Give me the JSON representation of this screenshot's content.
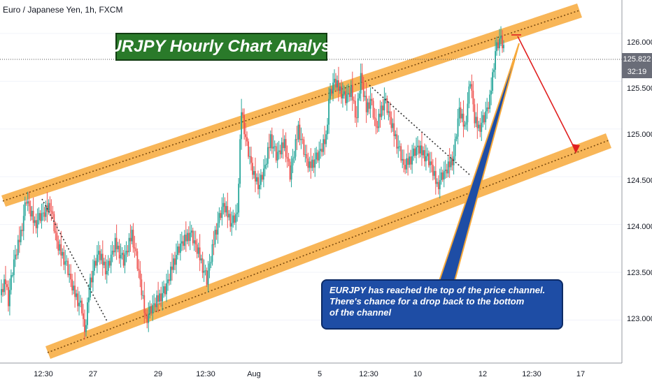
{
  "header": {
    "symbol_line": "Euro / Japanese Yen, 1h, FXCM"
  },
  "title": "EURJPY Hourly Chart Analysis",
  "callout": {
    "lines": [
      "EURJPY has reached the top of the price channel.",
      "There's chance for a drop back to the bottom",
      "of the channel"
    ]
  },
  "price_axis": {
    "current_price": "125.822",
    "countdown": "32:19"
  },
  "colors": {
    "up": "#26a69a",
    "down": "#ef5350",
    "channel_band": "#f7a93b",
    "title_bg": "#2a7a2a",
    "callout_bg": "#1e4da5",
    "arrow": "#e02020"
  },
  "chart_data": {
    "type": "candlestick",
    "title": "Euro / Japanese Yen, 1h, FXCM",
    "ylim": [
      122.55,
      126.35
    ],
    "y_ticks": [
      "126.000",
      "125.500",
      "125.000",
      "124.500",
      "124.000",
      "123.500",
      "123.000"
    ],
    "x_ticks": [
      "12:30",
      "27",
      "29",
      "12:30",
      "Aug",
      "5",
      "12:30",
      "10",
      "12",
      "12:30",
      "17"
    ],
    "grid": true,
    "close_path": [
      [
        0,
        123.3
      ],
      [
        3,
        123.4
      ],
      [
        5,
        123.2
      ],
      [
        9,
        123.6
      ],
      [
        14,
        123.9
      ],
      [
        18,
        124.25
      ],
      [
        24,
        124.0
      ],
      [
        30,
        124.1
      ],
      [
        35,
        124.2
      ],
      [
        40,
        123.8
      ],
      [
        46,
        123.6
      ],
      [
        52,
        123.3
      ],
      [
        58,
        123.1
      ],
      [
        60,
        122.85
      ],
      [
        64,
        123.4
      ],
      [
        70,
        123.7
      ],
      [
        76,
        123.5
      ],
      [
        82,
        123.8
      ],
      [
        88,
        123.6
      ],
      [
        94,
        123.9
      ],
      [
        100,
        123.4
      ],
      [
        104,
        123.0
      ],
      [
        108,
        123.1
      ],
      [
        112,
        123.2
      ],
      [
        118,
        123.3
      ],
      [
        124,
        123.6
      ],
      [
        130,
        123.8
      ],
      [
        136,
        123.9
      ],
      [
        142,
        123.7
      ],
      [
        148,
        123.4
      ],
      [
        154,
        123.9
      ],
      [
        160,
        124.2
      ],
      [
        166,
        124.0
      ],
      [
        170,
        124.1
      ],
      [
        173,
        125.2
      ],
      [
        177,
        124.8
      ],
      [
        182,
        124.5
      ],
      [
        186,
        124.4
      ],
      [
        190,
        124.6
      ],
      [
        194,
        124.9
      ],
      [
        198,
        124.7
      ],
      [
        204,
        124.85
      ],
      [
        208,
        124.5
      ],
      [
        214,
        125.0
      ],
      [
        219,
        124.7
      ],
      [
        222,
        124.6
      ],
      [
        228,
        124.7
      ],
      [
        234,
        124.9
      ],
      [
        236,
        125.3
      ],
      [
        240,
        125.5
      ],
      [
        244,
        125.4
      ],
      [
        248,
        125.3
      ],
      [
        252,
        125.4
      ],
      [
        256,
        125.1
      ],
      [
        259,
        125.55
      ],
      [
        263,
        125.2
      ],
      [
        266,
        125.3
      ],
      [
        270,
        125.0
      ],
      [
        276,
        125.3
      ],
      [
        282,
        125.0
      ],
      [
        286,
        124.8
      ],
      [
        290,
        124.6
      ],
      [
        296,
        124.7
      ],
      [
        300,
        124.8
      ],
      [
        306,
        124.7
      ],
      [
        310,
        124.6
      ],
      [
        314,
        124.4
      ],
      [
        318,
        124.5
      ],
      [
        322,
        124.6
      ],
      [
        326,
        124.7
      ],
      [
        330,
        125.2
      ],
      [
        334,
        125.0
      ],
      [
        338,
        125.5
      ],
      [
        341,
        125.1
      ],
      [
        344,
        125.0
      ],
      [
        348,
        125.1
      ],
      [
        352,
        125.3
      ],
      [
        356,
        125.8
      ],
      [
        360,
        125.95
      ],
      [
        362,
        125.82
      ]
    ],
    "candle_offsets": [
      [
        0.05,
        0.1
      ],
      [
        -0.08,
        0.06
      ],
      [
        0.12,
        0.05
      ],
      [
        -0.05,
        0.14
      ],
      [
        0.09,
        0.04
      ],
      [
        -0.11,
        0.07
      ],
      [
        0.03,
        0.12
      ],
      [
        0.14,
        0.06
      ],
      [
        -0.06,
        0.03
      ],
      [
        0.07,
        0.1
      ]
    ],
    "annotations": {
      "channel_upper": [
        [
          129.0,
          124.25
        ],
        [
          125.0,
          126.3
        ]
      ],
      "channel_lower": [
        [
          122.85,
          122.7
        ],
        [
          124.55,
          125.05
        ]
      ]
    }
  }
}
